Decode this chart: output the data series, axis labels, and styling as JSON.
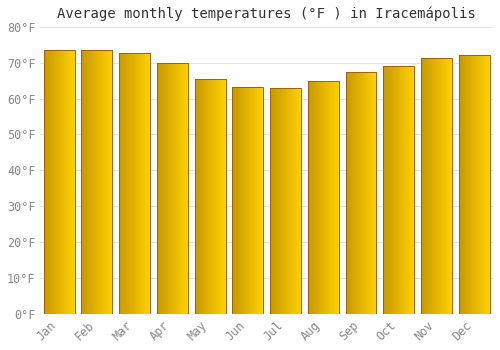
{
  "title": "Average monthly temperatures (°F ) in Iracemápolis",
  "months": [
    "Jan",
    "Feb",
    "Mar",
    "Apr",
    "May",
    "Jun",
    "Jul",
    "Aug",
    "Sep",
    "Oct",
    "Nov",
    "Dec"
  ],
  "values": [
    73.4,
    73.4,
    72.7,
    69.8,
    65.5,
    63.1,
    63.0,
    65.0,
    67.3,
    69.1,
    71.2,
    72.1
  ],
  "bar_color_left": "#C87800",
  "bar_color_mid": "#F5A800",
  "bar_color_right": "#FFD040",
  "bar_edge_color": "#A06000",
  "background_color": "#FFFFFF",
  "grid_color": "#DDDDDD",
  "ylim": [
    0,
    80
  ],
  "yticks": [
    0,
    10,
    20,
    30,
    40,
    50,
    60,
    70,
    80
  ],
  "ylabel_suffix": "°F",
  "title_fontsize": 10,
  "tick_fontsize": 8.5,
  "tick_color": "#888888"
}
